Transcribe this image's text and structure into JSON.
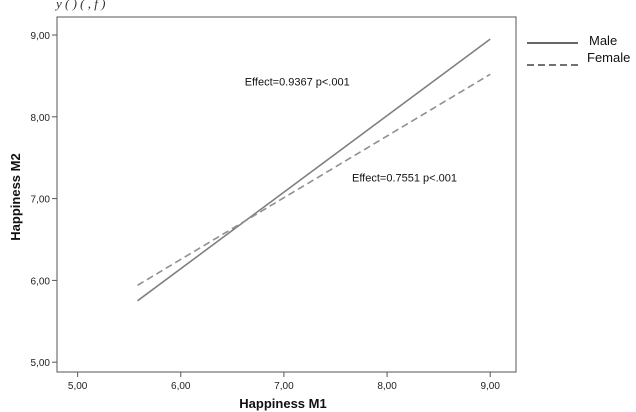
{
  "header": {
    "partial_text": "y                                 (      ) (              ,      f              )"
  },
  "chart_data": {
    "type": "line",
    "xlabel": "Happiness M1",
    "ylabel": "Happiness M2",
    "xlim": [
      4.8,
      9.25
    ],
    "ylim": [
      4.88,
      9.22
    ],
    "xticks": [
      "5,00",
      "6,00",
      "7,00",
      "8,00",
      "9,00"
    ],
    "yticks": [
      "5,00",
      "6,00",
      "7,00",
      "8,00",
      "9,00"
    ],
    "xtick_values": [
      5,
      6,
      7,
      8,
      9
    ],
    "ytick_values": [
      5,
      6,
      7,
      8,
      9
    ],
    "grid": false,
    "legend_position": "outside-top-right",
    "series": [
      {
        "name": "Male",
        "style": "solid",
        "color": "#808080",
        "x": [
          5.58,
          9.0
        ],
        "y": [
          5.75,
          8.95
        ]
      },
      {
        "name": "Female",
        "style": "dashed",
        "color": "#909090",
        "x": [
          5.58,
          9.0
        ],
        "y": [
          5.94,
          8.52
        ]
      }
    ],
    "annotations": [
      {
        "text": "Effect=0.9367  p<.001",
        "x": 6.62,
        "y": 8.38
      },
      {
        "text": "Effect=0.7551  p<.001",
        "x": 7.66,
        "y": 7.21
      }
    ]
  }
}
